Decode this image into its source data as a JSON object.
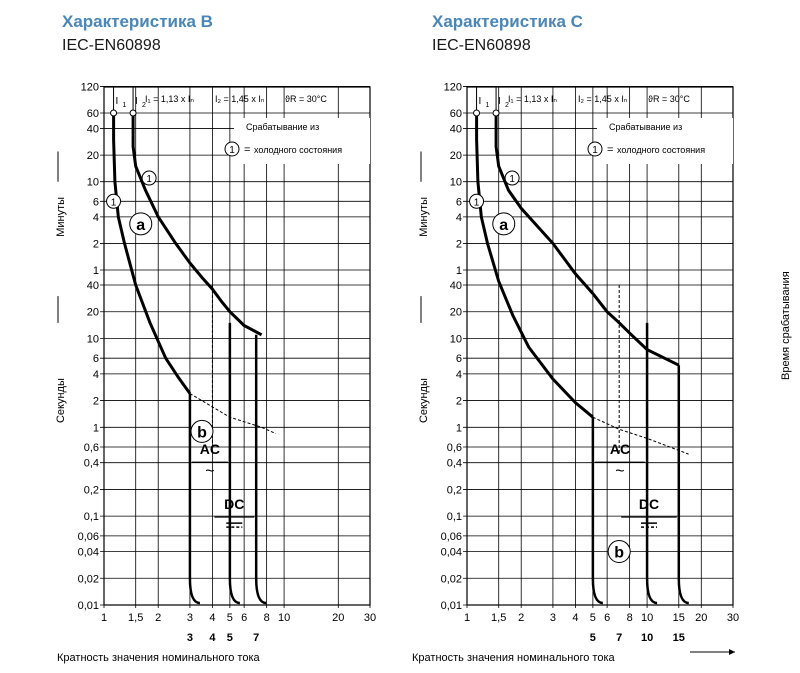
{
  "panels": [
    {
      "title": "Характеристика B",
      "standard": "IEC-EN60898"
    },
    {
      "title": "Характеристика C",
      "standard": "IEC-EN60898"
    }
  ],
  "formula": {
    "i1_label": "I",
    "i1_sub": "1",
    "i2_label": "I",
    "i2_sub": "2",
    "i1_def": "I₁ = 1,13 x Iₙ",
    "i2_def": "I₂ = 1,45 x Iₙ",
    "temp": "ϑR = 30°C"
  },
  "legend": {
    "line1": "Срабатывание из",
    "marker": "1",
    "equals": "=",
    "line2": "холодного состояния"
  },
  "axis": {
    "y_minutes": "Минуты",
    "y_seconds": "Секунды",
    "y_right": "Время срабатывания",
    "x_label": "Кратность значения номинального тока"
  },
  "region_labels": {
    "a": "a",
    "b": "b",
    "ac": "AC",
    "dc": "DC",
    "tilde": "~"
  },
  "chart_data": [
    {
      "type": "line",
      "title": "Характеристика B",
      "x_scale": "log",
      "y_scale": "log",
      "x_ticks": [
        "1",
        "1,5",
        "2",
        "3",
        "4",
        "5",
        "6",
        "8",
        "10",
        "20",
        "30"
      ],
      "x_tick_values": [
        1,
        1.5,
        2,
        3,
        4,
        5,
        6,
        8,
        10,
        20,
        30
      ],
      "x_bold_ticks": [
        "3",
        "4",
        "5",
        "7"
      ],
      "x_bold_values": [
        3,
        4,
        5,
        7
      ],
      "y_minute_ticks": [
        "120",
        "60",
        "40",
        "20",
        "10",
        "6",
        "4",
        "2",
        "1"
      ],
      "y_minute_values": [
        120,
        60,
        40,
        20,
        10,
        6,
        4,
        2,
        1
      ],
      "y_second_ticks": [
        "40",
        "20",
        "10",
        "6",
        "4",
        "2",
        "1",
        "0,6",
        "0,4",
        "0,2",
        "0,1",
        "0,06",
        "0,04",
        "0,02",
        "0,01"
      ],
      "y_second_values": [
        40,
        20,
        10,
        6,
        4,
        2,
        1,
        0.6,
        0.4,
        0.2,
        0.1,
        0.06,
        0.04,
        0.02,
        0.01
      ],
      "series": [
        {
          "name": "min",
          "x": [
            1.13,
            1.13,
            1.15,
            1.2,
            1.3,
            1.5,
            1.8,
            2.2,
            2.6,
            3
          ],
          "y_sec": [
            3600,
            1800,
            600,
            240,
            120,
            40,
            15,
            6,
            3.6,
            2.4
          ]
        },
        {
          "name": "max",
          "x": [
            1.45,
            1.45,
            1.5,
            1.7,
            2,
            2.5,
            3,
            3.5,
            4,
            4.5,
            5,
            6,
            7.5
          ],
          "y_sec": [
            3600,
            1500,
            900,
            480,
            240,
            120,
            72,
            50,
            36,
            26,
            20,
            14,
            11
          ]
        },
        {
          "name": "dashed",
          "x": [
            3,
            4,
            5,
            7.5,
            9
          ],
          "y_sec": [
            2.4,
            1.7,
            1.3,
            1.0,
            0.85
          ]
        }
      ],
      "instantaneous_min": 3,
      "instantaneous_max": 5,
      "dc_min": 4,
      "dc_max": 7,
      "instantaneous_time": 0.02,
      "marker_points": [
        {
          "x": 1.13,
          "y_sec": 360
        },
        {
          "x": 1.78,
          "y_sec": 660
        }
      ]
    },
    {
      "type": "line",
      "title": "Характеристика C",
      "x_scale": "log",
      "y_scale": "log",
      "x_ticks": [
        "1",
        "1,5",
        "2",
        "3",
        "4",
        "5",
        "6",
        "8",
        "10",
        "15",
        "20",
        "30"
      ],
      "x_tick_values": [
        1,
        1.5,
        2,
        3,
        4,
        5,
        6,
        8,
        10,
        15,
        20,
        30
      ],
      "x_bold_ticks": [
        "5",
        "7",
        "10",
        "15"
      ],
      "x_bold_values": [
        5,
        7,
        10,
        15
      ],
      "y_minute_ticks": [
        "120",
        "60",
        "40",
        "20",
        "10",
        "6",
        "4",
        "2",
        "1"
      ],
      "y_minute_values": [
        120,
        60,
        40,
        20,
        10,
        6,
        4,
        2,
        1
      ],
      "y_second_ticks": [
        "40",
        "20",
        "10",
        "6",
        "4",
        "2",
        "1",
        "0,6",
        "0,4",
        "0,2",
        "0,1",
        "0,06",
        "0,04",
        "0,02",
        "0,01"
      ],
      "y_second_values": [
        40,
        20,
        10,
        6,
        4,
        2,
        1,
        0.6,
        0.4,
        0.2,
        0.1,
        0.06,
        0.04,
        0.02,
        0.01
      ],
      "series": [
        {
          "name": "min",
          "x": [
            1.13,
            1.13,
            1.15,
            1.2,
            1.3,
            1.5,
            1.8,
            2.2,
            3,
            4,
            5
          ],
          "y_sec": [
            3600,
            1800,
            600,
            240,
            120,
            45,
            18,
            8,
            3.5,
            1.9,
            1.3
          ]
        },
        {
          "name": "max",
          "x": [
            1.45,
            1.45,
            1.5,
            1.7,
            2,
            3,
            4,
            5,
            6,
            7,
            8,
            10,
            15
          ],
          "y_sec": [
            3600,
            1500,
            900,
            480,
            300,
            120,
            55,
            32,
            20,
            15,
            11.5,
            7.5,
            5
          ]
        },
        {
          "name": "dashed",
          "x": [
            5,
            7,
            10,
            15,
            17
          ],
          "y_sec": [
            1.3,
            0.95,
            0.75,
            0.55,
            0.5
          ]
        }
      ],
      "instantaneous_min": 5,
      "instantaneous_max": 10,
      "dc_min": 7,
      "dc_max": 15,
      "instantaneous_time": 0.02,
      "marker_points": [
        {
          "x": 1.13,
          "y_sec": 360
        },
        {
          "x": 1.78,
          "y_sec": 660
        }
      ]
    }
  ]
}
